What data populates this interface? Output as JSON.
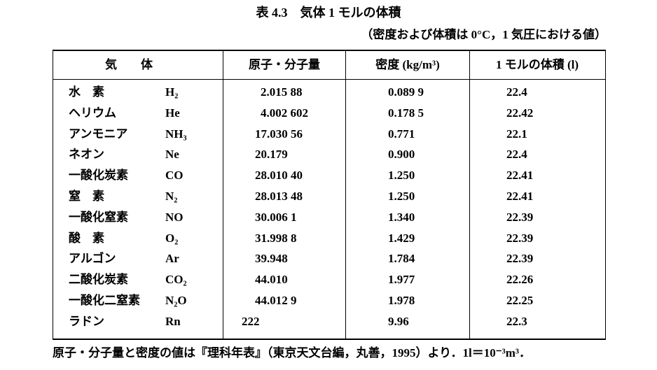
{
  "header": {
    "title": "表 4.3　気体 1 モルの体積",
    "subtitle": "（密度および体積は 0°C，1 気圧における値）"
  },
  "table": {
    "columns": [
      "気　　体",
      "原子・分子量",
      "密度 (kg/m³)",
      "1 モルの体積 (l)"
    ],
    "rows": [
      [
        "水　素",
        "H₂",
        "2.015 88",
        "0.089 9",
        "22.4"
      ],
      [
        "ヘリウム",
        "He",
        "4.002 602",
        "0.178 5",
        "22.42"
      ],
      [
        "アンモニア",
        "NH₃",
        "17.030 56",
        "0.771",
        "22.1"
      ],
      [
        "ネオン",
        "Ne",
        "20.179",
        "0.900",
        "22.4"
      ],
      [
        "一酸化炭素",
        "CO",
        "28.010 40",
        "1.250",
        "22.41"
      ],
      [
        "窒　素",
        "N₂",
        "28.013 48",
        "1.250",
        "22.41"
      ],
      [
        "一酸化窒素",
        "NO",
        "30.006 1",
        "1.340",
        "22.39"
      ],
      [
        "酸　素",
        "O₂",
        "31.998 8",
        "1.429",
        "22.39"
      ],
      [
        "アルゴン",
        "Ar",
        "39.948",
        "1.784",
        "22.39"
      ],
      [
        "二酸化炭素",
        "CO₂",
        "44.010",
        "1.977",
        "22.26"
      ],
      [
        "一酸化二窒素",
        "N₂O",
        "44.012 9",
        "1.978",
        "22.25"
      ],
      [
        "ラドン",
        "Rn",
        "222",
        "9.96",
        "22.3"
      ]
    ]
  },
  "footnote": "原子・分子量と密度の値は『理科年表』（東京天文台編，丸善，1995）より．1l＝10⁻³m³．"
}
